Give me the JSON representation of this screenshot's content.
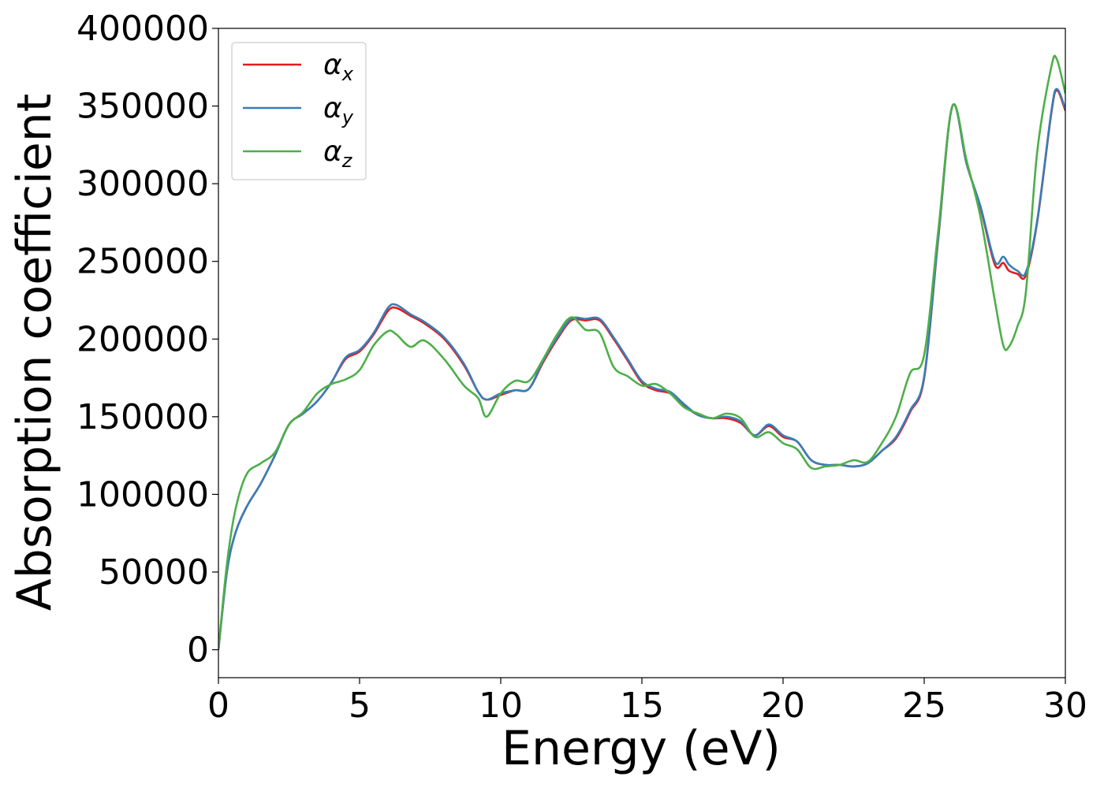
{
  "chart_data": {
    "type": "line",
    "title": "",
    "xlabel": "Energy (eV)",
    "ylabel": "Absorption coefficient",
    "xlim": [
      0,
      30
    ],
    "ylim": [
      -18000,
      400000
    ],
    "xticks": [
      0,
      5,
      10,
      15,
      20,
      25,
      30
    ],
    "yticks": [
      0,
      50000,
      100000,
      150000,
      200000,
      250000,
      300000,
      350000,
      400000
    ],
    "grid": false,
    "legend_position": "top-left",
    "legend": [
      {
        "symbol": "α",
        "subscript": "x"
      },
      {
        "symbol": "α",
        "subscript": "y"
      },
      {
        "symbol": "α",
        "subscript": "z"
      }
    ],
    "series": [
      {
        "color": "#e41a1c",
        "x": [
          0,
          0.3,
          0.6,
          1,
          1.5,
          2,
          2.5,
          3,
          3.5,
          4,
          4.5,
          5,
          5.5,
          6,
          6.3,
          6.8,
          7.3,
          8,
          8.7,
          9.2,
          9.5,
          10,
          10.5,
          11,
          11.5,
          12,
          12.5,
          13,
          13.5,
          14,
          14.5,
          15,
          15.5,
          16,
          16.5,
          17,
          17.5,
          18,
          18.5,
          19,
          19.5,
          20,
          20.5,
          21,
          21.5,
          22,
          22.5,
          23,
          23.5,
          24,
          24.5,
          25,
          25.5,
          26,
          26.5,
          27,
          27.5,
          27.8,
          28,
          28.3,
          28.6,
          29,
          29.5,
          29.7,
          30
        ],
        "y": [
          0,
          50000,
          75000,
          92000,
          107000,
          125000,
          145000,
          152000,
          160000,
          172000,
          187000,
          192000,
          203000,
          218000,
          220000,
          215000,
          210000,
          200000,
          183000,
          166000,
          161000,
          164000,
          167000,
          168000,
          185000,
          200000,
          212000,
          212000,
          212000,
          200000,
          186000,
          172000,
          167000,
          165000,
          157000,
          151000,
          149000,
          149000,
          146000,
          138000,
          144000,
          137000,
          134000,
          122000,
          119000,
          119000,
          118000,
          120000,
          128000,
          136000,
          153000,
          175000,
          265000,
          350000,
          313000,
          284000,
          248000,
          249000,
          244000,
          242000,
          241000,
          275000,
          345000,
          360000,
          347000
        ]
      },
      {
        "color": "#377eb8",
        "x": [
          0,
          0.3,
          0.6,
          1,
          1.5,
          2,
          2.5,
          3,
          3.5,
          4,
          4.5,
          5,
          5.5,
          6,
          6.3,
          6.8,
          7.3,
          8,
          8.7,
          9.2,
          9.5,
          10,
          10.5,
          11,
          11.5,
          12,
          12.5,
          13,
          13.5,
          14,
          14.5,
          15,
          15.5,
          16,
          16.5,
          17,
          17.5,
          18,
          18.5,
          19,
          19.5,
          20,
          20.5,
          21,
          21.5,
          22,
          22.5,
          23,
          23.5,
          24,
          24.5,
          25,
          25.5,
          26,
          26.5,
          27,
          27.5,
          27.8,
          28,
          28.3,
          28.6,
          29,
          29.5,
          29.7,
          30
        ],
        "y": [
          0,
          50000,
          75000,
          92000,
          107000,
          125000,
          145000,
          152000,
          160000,
          172000,
          188000,
          193000,
          204000,
          220000,
          222000,
          216000,
          211000,
          201000,
          184000,
          166000,
          161000,
          165000,
          167000,
          168000,
          186000,
          201000,
          213000,
          213000,
          213000,
          201000,
          187000,
          173000,
          168000,
          166000,
          158000,
          151000,
          149000,
          150000,
          147000,
          138000,
          145000,
          138000,
          134000,
          122000,
          119000,
          119000,
          118000,
          120000,
          128000,
          137000,
          154000,
          176000,
          266000,
          350000,
          313000,
          285000,
          250000,
          253000,
          248000,
          244000,
          243000,
          276000,
          346000,
          361000,
          348000
        ]
      },
      {
        "color": "#4daf4a",
        "x": [
          0,
          0.3,
          0.6,
          1,
          1.5,
          2,
          2.5,
          3,
          3.5,
          4,
          4.5,
          5,
          5.5,
          6,
          6.3,
          6.8,
          7.3,
          8,
          8.7,
          9.2,
          9.5,
          10,
          10.5,
          11,
          11.5,
          12,
          12.5,
          13,
          13.5,
          14,
          14.5,
          15,
          15.5,
          16,
          16.5,
          17,
          17.5,
          18,
          18.5,
          19,
          19.5,
          20,
          20.5,
          21,
          21.5,
          22,
          22.5,
          23,
          23.5,
          24,
          24.5,
          25,
          25.5,
          26,
          26.5,
          27,
          27.5,
          27.8,
          28,
          28.3,
          28.6,
          29,
          29.5,
          29.7,
          30
        ],
        "y": [
          0,
          55000,
          90000,
          113000,
          120000,
          127000,
          145000,
          153000,
          165000,
          171000,
          174000,
          180000,
          196000,
          205000,
          203000,
          195000,
          199000,
          187000,
          170000,
          162000,
          150000,
          165000,
          173000,
          173000,
          187000,
          203000,
          214000,
          206000,
          204000,
          182000,
          176000,
          170000,
          171000,
          165000,
          156000,
          152000,
          149000,
          152000,
          149000,
          137000,
          140000,
          133000,
          129000,
          117000,
          118000,
          119000,
          122000,
          121000,
          133000,
          150000,
          178000,
          190000,
          270000,
          350000,
          315000,
          278000,
          225000,
          196000,
          195000,
          208000,
          230000,
          320000,
          375000,
          380000,
          358000
        ]
      }
    ]
  }
}
